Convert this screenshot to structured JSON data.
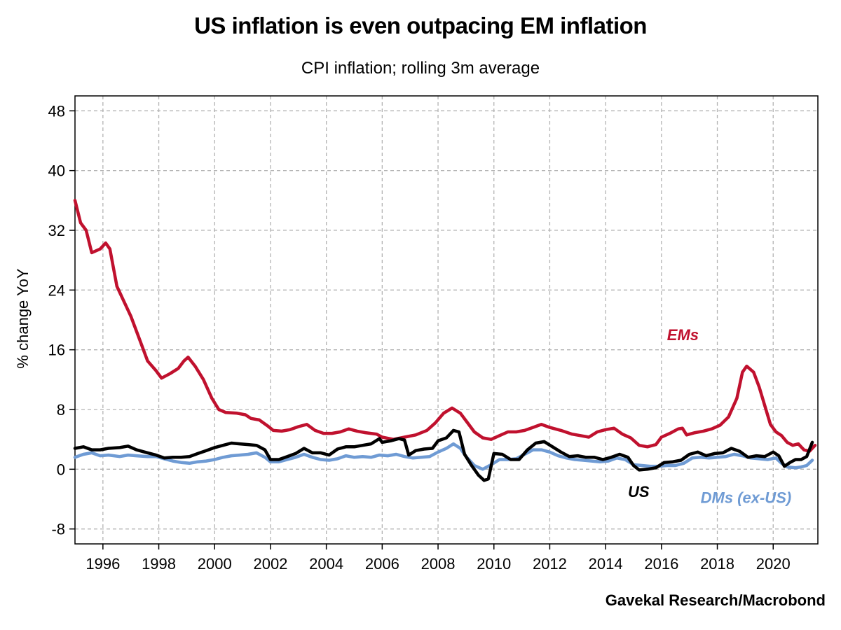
{
  "header": {
    "title": "US inflation is even outpacing EM inflation",
    "subtitle": "CPI inflation; rolling 3m average"
  },
  "footer": {
    "source": "Gavekal Research/Macrobond"
  },
  "chart_data": {
    "type": "line",
    "title": "US inflation is even outpacing EM inflation",
    "subtitle": "CPI inflation; rolling 3m average",
    "ylabel": "% change YoY",
    "xlim": [
      1995.0,
      2021.6
    ],
    "ylim": [
      -10,
      50
    ],
    "y_ticks": [
      -8,
      0,
      8,
      16,
      24,
      32,
      40,
      48
    ],
    "y_tick_labels": [
      "-8",
      "0",
      "8",
      "16",
      "24",
      "32",
      "40",
      "48"
    ],
    "x_ticks": [
      1996,
      1998,
      2000,
      2002,
      2004,
      2006,
      2008,
      2010,
      2012,
      2014,
      2016,
      2018,
      2020
    ],
    "x_tick_labels": [
      "1996",
      "1998",
      "2000",
      "2002",
      "2004",
      "2006",
      "2008",
      "2010",
      "2012",
      "2014",
      "2016",
      "2018",
      "2020"
    ],
    "grid": true,
    "series": [
      {
        "name": "EMs",
        "color": "#c0112e",
        "points": [
          [
            1995.0,
            36.0
          ],
          [
            1995.2,
            33.0
          ],
          [
            1995.4,
            32.0
          ],
          [
            1995.6,
            29.0
          ],
          [
            1995.9,
            29.5
          ],
          [
            1996.1,
            30.3
          ],
          [
            1996.25,
            29.5
          ],
          [
            1996.5,
            24.5
          ],
          [
            1996.75,
            22.5
          ],
          [
            1997.0,
            20.5
          ],
          [
            1997.3,
            17.5
          ],
          [
            1997.6,
            14.5
          ],
          [
            1997.9,
            13.2
          ],
          [
            1998.1,
            12.2
          ],
          [
            1998.4,
            12.8
          ],
          [
            1998.7,
            13.5
          ],
          [
            1998.9,
            14.5
          ],
          [
            1999.05,
            15.0
          ],
          [
            1999.3,
            13.8
          ],
          [
            1999.6,
            12.0
          ],
          [
            1999.9,
            9.5
          ],
          [
            2000.15,
            8.0
          ],
          [
            2000.4,
            7.6
          ],
          [
            2000.8,
            7.5
          ],
          [
            2001.1,
            7.3
          ],
          [
            2001.3,
            6.8
          ],
          [
            2001.6,
            6.6
          ],
          [
            2001.9,
            5.8
          ],
          [
            2002.1,
            5.2
          ],
          [
            2002.4,
            5.1
          ],
          [
            2002.7,
            5.3
          ],
          [
            2003.0,
            5.7
          ],
          [
            2003.3,
            6.0
          ],
          [
            2003.6,
            5.2
          ],
          [
            2003.9,
            4.8
          ],
          [
            2004.2,
            4.8
          ],
          [
            2004.5,
            5.0
          ],
          [
            2004.8,
            5.4
          ],
          [
            2005.1,
            5.1
          ],
          [
            2005.4,
            4.9
          ],
          [
            2005.8,
            4.7
          ],
          [
            2006.0,
            4.3
          ],
          [
            2006.4,
            4.0
          ],
          [
            2006.8,
            4.3
          ],
          [
            2007.2,
            4.6
          ],
          [
            2007.6,
            5.2
          ],
          [
            2007.9,
            6.2
          ],
          [
            2008.2,
            7.5
          ],
          [
            2008.5,
            8.2
          ],
          [
            2008.8,
            7.5
          ],
          [
            2009.0,
            6.5
          ],
          [
            2009.3,
            5.0
          ],
          [
            2009.6,
            4.2
          ],
          [
            2009.9,
            4.0
          ],
          [
            2010.2,
            4.5
          ],
          [
            2010.5,
            5.0
          ],
          [
            2010.8,
            5.0
          ],
          [
            2011.1,
            5.2
          ],
          [
            2011.4,
            5.6
          ],
          [
            2011.7,
            6.0
          ],
          [
            2012.0,
            5.6
          ],
          [
            2012.4,
            5.2
          ],
          [
            2012.8,
            4.7
          ],
          [
            2013.1,
            4.5
          ],
          [
            2013.4,
            4.3
          ],
          [
            2013.7,
            5.0
          ],
          [
            2014.0,
            5.3
          ],
          [
            2014.3,
            5.5
          ],
          [
            2014.6,
            4.7
          ],
          [
            2014.9,
            4.2
          ],
          [
            2015.2,
            3.2
          ],
          [
            2015.5,
            3.0
          ],
          [
            2015.8,
            3.3
          ],
          [
            2016.0,
            4.3
          ],
          [
            2016.3,
            4.8
          ],
          [
            2016.6,
            5.4
          ],
          [
            2016.75,
            5.5
          ],
          [
            2016.9,
            4.6
          ],
          [
            2017.2,
            4.9
          ],
          [
            2017.5,
            5.1
          ],
          [
            2017.8,
            5.4
          ],
          [
            2018.1,
            5.9
          ],
          [
            2018.4,
            7.0
          ],
          [
            2018.7,
            9.5
          ],
          [
            2018.9,
            13.0
          ],
          [
            2019.05,
            13.8
          ],
          [
            2019.3,
            13.0
          ],
          [
            2019.5,
            11.0
          ],
          [
            2019.7,
            8.5
          ],
          [
            2019.9,
            6.0
          ],
          [
            2020.1,
            5.0
          ],
          [
            2020.3,
            4.5
          ],
          [
            2020.5,
            3.6
          ],
          [
            2020.7,
            3.2
          ],
          [
            2020.9,
            3.4
          ],
          [
            2021.1,
            2.6
          ],
          [
            2021.3,
            2.4
          ],
          [
            2021.5,
            3.2
          ]
        ]
      },
      {
        "name": "US",
        "color": "#000000",
        "points": [
          [
            1995.0,
            2.8
          ],
          [
            1995.3,
            3.0
          ],
          [
            1995.6,
            2.6
          ],
          [
            1995.9,
            2.6
          ],
          [
            1996.2,
            2.8
          ],
          [
            1996.6,
            2.9
          ],
          [
            1996.9,
            3.1
          ],
          [
            1997.2,
            2.6
          ],
          [
            1997.6,
            2.2
          ],
          [
            1997.9,
            1.9
          ],
          [
            1998.2,
            1.5
          ],
          [
            1998.5,
            1.6
          ],
          [
            1998.8,
            1.6
          ],
          [
            1999.1,
            1.7
          ],
          [
            1999.4,
            2.1
          ],
          [
            1999.7,
            2.5
          ],
          [
            2000.0,
            2.9
          ],
          [
            2000.3,
            3.2
          ],
          [
            2000.6,
            3.5
          ],
          [
            2000.9,
            3.4
          ],
          [
            2001.2,
            3.3
          ],
          [
            2001.5,
            3.2
          ],
          [
            2001.8,
            2.6
          ],
          [
            2002.0,
            1.3
          ],
          [
            2002.3,
            1.3
          ],
          [
            2002.6,
            1.7
          ],
          [
            2002.9,
            2.1
          ],
          [
            2003.2,
            2.8
          ],
          [
            2003.5,
            2.2
          ],
          [
            2003.8,
            2.2
          ],
          [
            2004.1,
            1.9
          ],
          [
            2004.4,
            2.7
          ],
          [
            2004.7,
            3.0
          ],
          [
            2005.0,
            3.0
          ],
          [
            2005.3,
            3.2
          ],
          [
            2005.6,
            3.4
          ],
          [
            2005.9,
            4.1
          ],
          [
            2006.0,
            3.6
          ],
          [
            2006.3,
            3.8
          ],
          [
            2006.6,
            4.1
          ],
          [
            2006.8,
            3.9
          ],
          [
            2006.95,
            1.9
          ],
          [
            2007.2,
            2.5
          ],
          [
            2007.5,
            2.7
          ],
          [
            2007.8,
            2.8
          ],
          [
            2008.0,
            3.8
          ],
          [
            2008.3,
            4.2
          ],
          [
            2008.55,
            5.2
          ],
          [
            2008.75,
            5.0
          ],
          [
            2008.95,
            2.0
          ],
          [
            2009.2,
            0.5
          ],
          [
            2009.45,
            -0.8
          ],
          [
            2009.65,
            -1.5
          ],
          [
            2009.8,
            -1.3
          ],
          [
            2010.0,
            2.1
          ],
          [
            2010.3,
            2.0
          ],
          [
            2010.6,
            1.3
          ],
          [
            2010.9,
            1.3
          ],
          [
            2011.2,
            2.6
          ],
          [
            2011.5,
            3.5
          ],
          [
            2011.8,
            3.7
          ],
          [
            2012.1,
            3.0
          ],
          [
            2012.4,
            2.3
          ],
          [
            2012.7,
            1.7
          ],
          [
            2013.0,
            1.8
          ],
          [
            2013.3,
            1.6
          ],
          [
            2013.6,
            1.6
          ],
          [
            2013.9,
            1.3
          ],
          [
            2014.2,
            1.6
          ],
          [
            2014.5,
            2.0
          ],
          [
            2014.8,
            1.6
          ],
          [
            2015.0,
            0.5
          ],
          [
            2015.2,
            -0.1
          ],
          [
            2015.5,
            0.0
          ],
          [
            2015.8,
            0.2
          ],
          [
            2016.1,
            0.9
          ],
          [
            2016.4,
            1.0
          ],
          [
            2016.7,
            1.2
          ],
          [
            2017.0,
            2.0
          ],
          [
            2017.3,
            2.3
          ],
          [
            2017.6,
            1.8
          ],
          [
            2017.9,
            2.1
          ],
          [
            2018.2,
            2.2
          ],
          [
            2018.5,
            2.8
          ],
          [
            2018.8,
            2.4
          ],
          [
            2019.1,
            1.6
          ],
          [
            2019.4,
            1.8
          ],
          [
            2019.7,
            1.7
          ],
          [
            2020.0,
            2.3
          ],
          [
            2020.2,
            1.8
          ],
          [
            2020.4,
            0.4
          ],
          [
            2020.6,
            0.9
          ],
          [
            2020.8,
            1.3
          ],
          [
            2021.0,
            1.3
          ],
          [
            2021.2,
            1.7
          ],
          [
            2021.4,
            3.6
          ]
        ]
      },
      {
        "name": "DMs (ex-US)",
        "color": "#6f9bd4",
        "points": [
          [
            1995.0,
            1.6
          ],
          [
            1995.3,
            2.0
          ],
          [
            1995.6,
            2.2
          ],
          [
            1995.9,
            1.8
          ],
          [
            1996.2,
            1.9
          ],
          [
            1996.6,
            1.7
          ],
          [
            1996.9,
            1.9
          ],
          [
            1997.2,
            1.8
          ],
          [
            1997.6,
            1.7
          ],
          [
            1997.9,
            1.7
          ],
          [
            1998.2,
            1.4
          ],
          [
            1998.5,
            1.1
          ],
          [
            1998.8,
            0.9
          ],
          [
            1999.1,
            0.8
          ],
          [
            1999.4,
            1.0
          ],
          [
            1999.7,
            1.1
          ],
          [
            2000.0,
            1.3
          ],
          [
            2000.3,
            1.6
          ],
          [
            2000.6,
            1.8
          ],
          [
            2000.9,
            1.9
          ],
          [
            2001.2,
            2.0
          ],
          [
            2001.5,
            2.2
          ],
          [
            2001.8,
            1.6
          ],
          [
            2002.0,
            1.0
          ],
          [
            2002.3,
            1.0
          ],
          [
            2002.6,
            1.3
          ],
          [
            2002.9,
            1.6
          ],
          [
            2003.2,
            2.0
          ],
          [
            2003.5,
            1.6
          ],
          [
            2003.8,
            1.3
          ],
          [
            2004.1,
            1.2
          ],
          [
            2004.4,
            1.4
          ],
          [
            2004.7,
            1.8
          ],
          [
            2005.0,
            1.6
          ],
          [
            2005.3,
            1.7
          ],
          [
            2005.6,
            1.6
          ],
          [
            2005.9,
            1.9
          ],
          [
            2006.2,
            1.8
          ],
          [
            2006.5,
            2.0
          ],
          [
            2006.8,
            1.7
          ],
          [
            2007.1,
            1.5
          ],
          [
            2007.4,
            1.6
          ],
          [
            2007.7,
            1.7
          ],
          [
            2008.0,
            2.3
          ],
          [
            2008.3,
            2.8
          ],
          [
            2008.55,
            3.4
          ],
          [
            2008.8,
            2.8
          ],
          [
            2009.0,
            1.7
          ],
          [
            2009.3,
            0.5
          ],
          [
            2009.6,
            0.0
          ],
          [
            2009.9,
            0.6
          ],
          [
            2010.2,
            1.3
          ],
          [
            2010.5,
            1.3
          ],
          [
            2010.8,
            1.4
          ],
          [
            2011.1,
            2.0
          ],
          [
            2011.4,
            2.6
          ],
          [
            2011.7,
            2.6
          ],
          [
            2012.0,
            2.3
          ],
          [
            2012.3,
            1.8
          ],
          [
            2012.6,
            1.5
          ],
          [
            2012.9,
            1.3
          ],
          [
            2013.2,
            1.2
          ],
          [
            2013.5,
            1.1
          ],
          [
            2013.8,
            1.0
          ],
          [
            2014.1,
            1.1
          ],
          [
            2014.4,
            1.5
          ],
          [
            2014.7,
            1.3
          ],
          [
            2015.0,
            0.6
          ],
          [
            2015.3,
            0.5
          ],
          [
            2015.6,
            0.4
          ],
          [
            2015.9,
            0.4
          ],
          [
            2016.2,
            0.5
          ],
          [
            2016.5,
            0.5
          ],
          [
            2016.8,
            0.8
          ],
          [
            2017.1,
            1.5
          ],
          [
            2017.4,
            1.6
          ],
          [
            2017.7,
            1.5
          ],
          [
            2018.0,
            1.6
          ],
          [
            2018.3,
            1.7
          ],
          [
            2018.6,
            2.0
          ],
          [
            2018.9,
            1.8
          ],
          [
            2019.2,
            1.5
          ],
          [
            2019.5,
            1.4
          ],
          [
            2019.8,
            1.3
          ],
          [
            2020.1,
            1.5
          ],
          [
            2020.3,
            0.8
          ],
          [
            2020.5,
            0.3
          ],
          [
            2020.8,
            0.2
          ],
          [
            2021.0,
            0.3
          ],
          [
            2021.2,
            0.5
          ],
          [
            2021.4,
            1.2
          ]
        ]
      }
    ],
    "annotations": [
      {
        "text": "EMs",
        "series": "EMs",
        "x": 2016.2,
        "y": 17.3
      },
      {
        "text": "US",
        "series": "US",
        "x": 2014.8,
        "y": -3.7
      },
      {
        "text": "DMs (ex-US)",
        "series": "DMs (ex-US)",
        "x": 2017.4,
        "y": -4.5
      }
    ]
  }
}
